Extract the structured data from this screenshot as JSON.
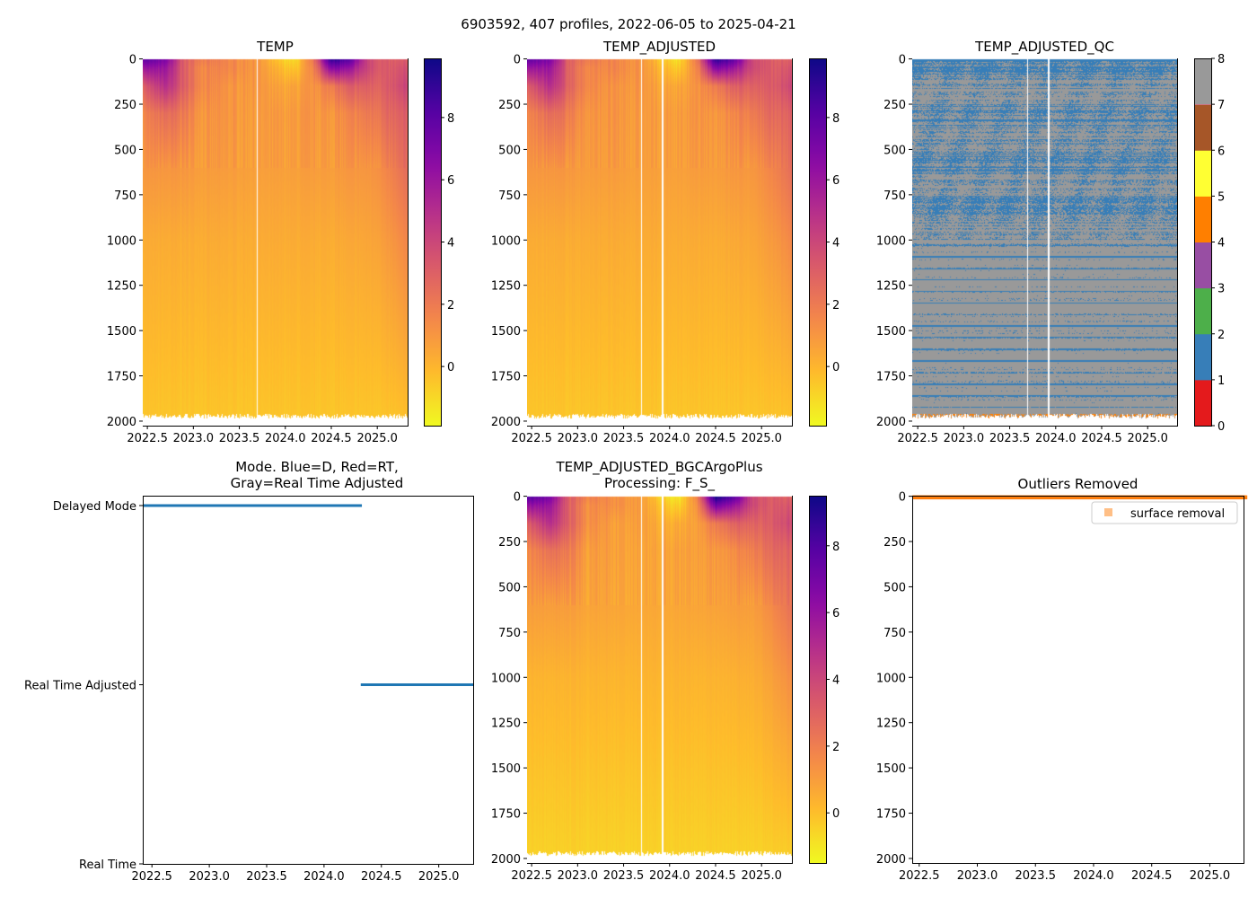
{
  "suptitle": "6903592, 407 profiles, 2022-06-05 to 2025-04-21",
  "chart_data": [
    {
      "id": "temp",
      "type": "heatmap",
      "title": "TEMP",
      "xlim": [
        2022.45,
        2025.33
      ],
      "ylim": [
        2025,
        -3
      ],
      "xticks": [
        2022.5,
        2023.0,
        2023.5,
        2024.0,
        2024.5,
        2025.0
      ],
      "xtick_labels": [
        "2022.5",
        "2023.0",
        "2023.5",
        "2024.0",
        "2024.5",
        "2025.0"
      ],
      "yticks": [
        0,
        250,
        500,
        750,
        1000,
        1250,
        1500,
        1750,
        2000
      ],
      "ytick_labels": [
        "0",
        "250",
        "500",
        "750",
        "1000",
        "1250",
        "1500",
        "1750",
        "2000"
      ],
      "colormap": "plasma_r",
      "clim": [
        -1.9,
        9.9
      ],
      "cbar_ticks": [
        0,
        2,
        4,
        6,
        8
      ],
      "cbar_tick_labels": [
        "0",
        "2",
        "4",
        "6",
        "8"
      ],
      "gaps": [
        2023.69
      ],
      "surface_anomaly": [],
      "source": "raw"
    },
    {
      "id": "temp_adj",
      "type": "heatmap",
      "title": "TEMP_ADJUSTED",
      "xlim": [
        2022.45,
        2025.33
      ],
      "ylim": [
        2025,
        -3
      ],
      "xticks": [
        2022.5,
        2023.0,
        2023.5,
        2024.0,
        2024.5,
        2025.0
      ],
      "xtick_labels": [
        "2022.5",
        "2023.0",
        "2023.5",
        "2024.0",
        "2024.5",
        "2025.0"
      ],
      "yticks": [
        0,
        250,
        500,
        750,
        1000,
        1250,
        1500,
        1750,
        2000
      ],
      "ytick_labels": [
        "0",
        "250",
        "500",
        "750",
        "1000",
        "1250",
        "1500",
        "1750",
        "2000"
      ],
      "colormap": "plasma_r",
      "clim": [
        -1.9,
        9.9
      ],
      "cbar_ticks": [
        0,
        2,
        4,
        6,
        8
      ],
      "cbar_tick_labels": [
        "0",
        "2",
        "4",
        "6",
        "8"
      ],
      "gaps": [
        2023.69,
        2023.92
      ]
    },
    {
      "id": "temp_adj_qc",
      "type": "heatmap",
      "title": "TEMP_ADJUSTED_QC",
      "xlim": [
        2022.44,
        2025.32
      ],
      "ylim": [
        2025,
        -3
      ],
      "xticks": [
        2022.5,
        2023.0,
        2023.5,
        2024.0,
        2024.5,
        2025.0
      ],
      "xtick_labels": [
        "2022.5",
        "2023.0",
        "2023.5",
        "2024.0",
        "2024.5",
        "2025.0"
      ],
      "yticks": [
        0,
        250,
        500,
        750,
        1000,
        1250,
        1500,
        1750,
        2000
      ],
      "ytick_labels": [
        "0",
        "250",
        "500",
        "750",
        "1000",
        "1250",
        "1500",
        "1750",
        "2000"
      ],
      "colormap": "qc_categorical",
      "qc_colors": [
        "#e41a1c",
        "#377eb8",
        "#4daf4a",
        "#984ea3",
        "#ff7f00",
        "#ffff33",
        "#a65628",
        "#f781bf",
        "#999999"
      ],
      "clim": [
        0,
        8
      ],
      "cbar_ticks": [
        0,
        1,
        2,
        3,
        4,
        5,
        6,
        7,
        8
      ],
      "cbar_tick_labels": [
        "0",
        "1",
        "2",
        "3",
        "4",
        "5",
        "6",
        "7",
        "8"
      ],
      "flags_present": [
        1,
        4,
        8
      ],
      "gaps": [
        2023.69,
        2023.92
      ]
    },
    {
      "id": "mode",
      "type": "line",
      "title": "Mode. Blue=D, Red=RT,\nGray=Real Time Adjusted",
      "title_lines": [
        "Mode. Blue=D, Red=RT,",
        "Gray=Real Time Adjusted"
      ],
      "xlim": [
        2022.42,
        2025.3
      ],
      "ylim": [
        0,
        2.055
      ],
      "xticks": [
        2022.5,
        2023.0,
        2023.5,
        2024.0,
        2024.5,
        2025.0
      ],
      "xtick_labels": [
        "2022.5",
        "2023.0",
        "2023.5",
        "2024.0",
        "2024.5",
        "2025.0"
      ],
      "yticks": [
        0,
        1,
        2
      ],
      "ytick_labels": [
        "Real Time",
        "Real Time Adjusted",
        "Delayed Mode"
      ],
      "series": [
        {
          "name": "Delayed Mode",
          "x": [
            2022.42,
            2024.33
          ],
          "y": [
            2,
            2
          ],
          "color": "#1f77b4"
        },
        {
          "name": "Real Time Adjusted",
          "x": [
            2024.32,
            2025.3
          ],
          "y": [
            1,
            1
          ],
          "color": "#1f77b4"
        }
      ]
    },
    {
      "id": "bgc",
      "type": "heatmap",
      "title": "TEMP_ADJUSTED_BGCArgoPlus",
      "subtitle": "Processing: F_S_",
      "xlim": [
        2022.45,
        2025.33
      ],
      "ylim": [
        2025,
        -3
      ],
      "xticks": [
        2022.5,
        2023.0,
        2023.5,
        2024.0,
        2024.5,
        2025.0
      ],
      "xtick_labels": [
        "2022.5",
        "2023.0",
        "2023.5",
        "2024.0",
        "2024.5",
        "2025.0"
      ],
      "yticks": [
        0,
        250,
        500,
        750,
        1000,
        1250,
        1500,
        1750,
        2000
      ],
      "ytick_labels": [
        "0",
        "250",
        "500",
        "750",
        "1000",
        "1250",
        "1500",
        "1750",
        "2000"
      ],
      "colormap": "plasma_r",
      "clim": [
        -1.5,
        9.5
      ],
      "cbar_ticks": [
        0,
        2,
        4,
        6,
        8
      ],
      "cbar_tick_labels": [
        "0",
        "2",
        "4",
        "6",
        "8"
      ],
      "gaps": [
        2023.69,
        2023.92
      ]
    },
    {
      "id": "outliers",
      "type": "scatter",
      "title": "Outliers Removed",
      "xlim": [
        2022.44,
        2025.29
      ],
      "ylim": [
        2025,
        -3
      ],
      "xticks": [
        2022.5,
        2023.0,
        2023.5,
        2024.0,
        2024.5,
        2025.0
      ],
      "xtick_labels": [
        "2022.5",
        "2023.0",
        "2023.5",
        "2024.0",
        "2024.5",
        "2025.0"
      ],
      "yticks": [
        0,
        250,
        500,
        750,
        1000,
        1250,
        1500,
        1750,
        2000
      ],
      "ytick_labels": [
        "0",
        "250",
        "500",
        "750",
        "1000",
        "1250",
        "1500",
        "1750",
        "2000"
      ],
      "series": [
        {
          "name": "surface removal",
          "x_range": [
            2022.44,
            2025.29
          ],
          "depth_range": [
            0,
            12
          ],
          "color": "#ff7f0e"
        }
      ],
      "legend": {
        "label": "surface removal",
        "placement": "top-right"
      }
    }
  ],
  "temperature_field": {
    "times": [
      2022.45,
      2022.7,
      2022.9,
      2023.1,
      2023.4,
      2023.7,
      2023.9,
      2024.1,
      2024.3,
      2024.5,
      2024.7,
      2024.9,
      2025.1,
      2025.33
    ],
    "depths": [
      0,
      50,
      150,
      300,
      600,
      1000,
      2000
    ],
    "values": [
      [
        8.0,
        7.0,
        3.0,
        2.0,
        1.5,
        1.0,
        -0.5,
        -1.2,
        2.0,
        9.5,
        8.0,
        4.0,
        3.0,
        3.0
      ],
      [
        6.0,
        6.0,
        3.0,
        1.5,
        1.5,
        1.0,
        0.0,
        -0.6,
        1.5,
        7.0,
        6.0,
        4.0,
        3.0,
        3.5
      ],
      [
        3.0,
        5.0,
        3.0,
        1.5,
        1.0,
        1.0,
        0.5,
        0.5,
        1.0,
        2.0,
        3.0,
        3.0,
        3.0,
        4.0
      ],
      [
        1.5,
        2.5,
        2.0,
        1.0,
        1.0,
        0.8,
        0.8,
        0.8,
        1.0,
        1.0,
        1.5,
        2.0,
        2.5,
        3.0
      ],
      [
        1.0,
        1.0,
        1.0,
        0.8,
        0.8,
        0.7,
        0.7,
        0.7,
        0.8,
        0.8,
        1.0,
        1.0,
        1.5,
        2.5
      ],
      [
        0.3,
        0.3,
        0.3,
        0.3,
        0.3,
        0.3,
        0.3,
        0.3,
        0.3,
        0.3,
        0.4,
        0.5,
        0.8,
        1.5
      ],
      [
        -0.5,
        -0.5,
        -0.5,
        -0.5,
        -0.5,
        -0.5,
        -0.5,
        -0.5,
        -0.5,
        -0.5,
        -0.5,
        -0.5,
        -0.5,
        -0.4
      ]
    ],
    "max_depth": 1985
  }
}
